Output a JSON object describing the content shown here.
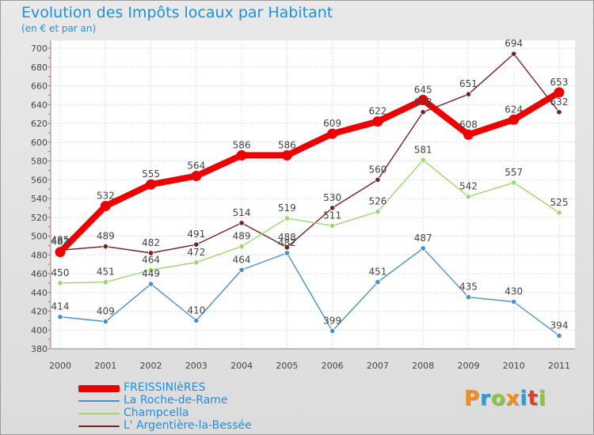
{
  "title": "Evolution des Impôts locaux par Habitant",
  "subtitle": "(en € et par an)",
  "logo": {
    "letters": [
      "P",
      "r",
      "o",
      "x",
      "i",
      "t",
      "i"
    ],
    "colors": [
      "#f28c1c",
      "#2a9fd8",
      "#8cc63f",
      "#f28c1c",
      "#2a9fd8",
      "#e23b2c",
      "#8cc63f"
    ]
  },
  "chart_data": {
    "type": "line",
    "x": [
      "2000",
      "2001",
      "2002",
      "2003",
      "2004",
      "2005",
      "2006",
      "2007",
      "2008",
      "2009",
      "2010",
      "2011"
    ],
    "y_ticks": [
      "380",
      "400",
      "420",
      "440",
      "460",
      "480",
      "500",
      "520",
      "540",
      "560",
      "580",
      "600",
      "620",
      "640",
      "660",
      "680",
      "700"
    ],
    "ylim": [
      380,
      700
    ],
    "grid": true,
    "series": [
      {
        "name": "FREISSINIèRES",
        "color": "#ee0000",
        "values": [
          483,
          532,
          555,
          564,
          586,
          586,
          609,
          622,
          645,
          608,
          624,
          653
        ]
      },
      {
        "name": "La Roche-de-Rame",
        "color": "#4a90d0",
        "values": [
          414,
          409,
          449,
          410,
          464,
          482,
          399,
          451,
          487,
          435,
          430,
          394
        ]
      },
      {
        "name": "Champcella",
        "color": "#9ad96a",
        "values": [
          450,
          451,
          464,
          472,
          489,
          519,
          511,
          526,
          581,
          542,
          557,
          525
        ]
      },
      {
        "name": "L' Argentière-la-Bessée",
        "color": "#7a1f1f",
        "values": [
          485,
          489,
          482,
          491,
          514,
          488,
          530,
          560,
          632,
          651,
          694,
          632
        ]
      }
    ]
  }
}
